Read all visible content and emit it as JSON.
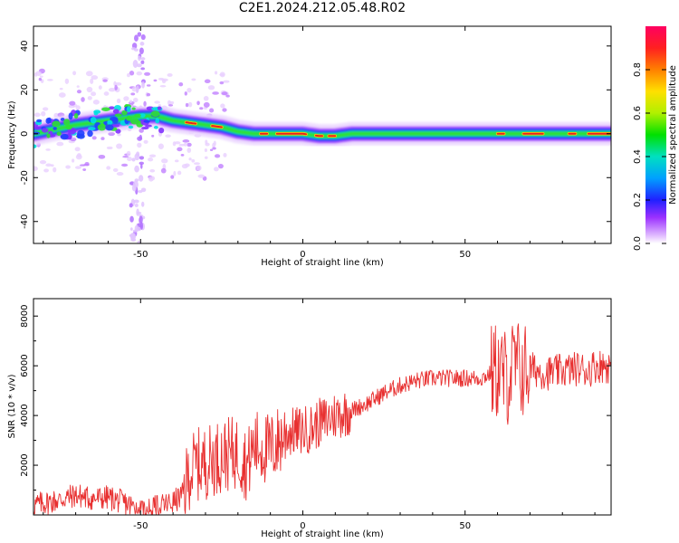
{
  "title": "C2E1.2024.212.05.48.R02",
  "chart_data": [
    {
      "type": "heatmap",
      "xlabel": "Height of straight line (km)",
      "ylabel": "Frequency (Hz)",
      "xlim": [
        -83,
        95
      ],
      "ylim": [
        -50,
        49
      ],
      "x_ticks": [
        -50,
        0,
        50
      ],
      "y_ticks": [
        -40,
        -20,
        0,
        20,
        40
      ],
      "colorbar": {
        "label": "Normalized spectral amplitude",
        "range": [
          0,
          1
        ],
        "ticks": [
          "0.0",
          "0.2",
          "0.4",
          "0.6",
          "0.8"
        ]
      },
      "ridge_frequency": {
        "x": [
          -83,
          -70,
          -60,
          -55,
          -50,
          -45,
          -40,
          -35,
          -30,
          -25,
          -20,
          -15,
          -10,
          -5,
          0,
          5,
          10,
          15,
          20,
          30,
          40,
          50,
          60,
          70,
          80,
          90,
          95
        ],
        "y": [
          0,
          4,
          6,
          7,
          8,
          8,
          6,
          5,
          4,
          3,
          1,
          0,
          0,
          0,
          0,
          -1,
          -1,
          0,
          0,
          0,
          0,
          0,
          0,
          0,
          0,
          0,
          0
        ]
      },
      "legend": "none"
    },
    {
      "type": "line",
      "xlabel": "Height of straight line (km)",
      "ylabel": "SNR (10 * v/v)",
      "xlim": [
        -83,
        95
      ],
      "ylim": [
        0,
        8700
      ],
      "x_ticks": [
        -50,
        0,
        50
      ],
      "y_ticks": [
        2000,
        4000,
        6000,
        8000
      ],
      "color": "#e83030",
      "series": [
        {
          "x": [
            -83,
            -75,
            -70,
            -65,
            -60,
            -55,
            -52,
            -50,
            -45,
            -40,
            -37,
            -35,
            -33,
            -30,
            -25,
            -20,
            -17,
            -15,
            -10,
            -5,
            0,
            3,
            5,
            7,
            10,
            15,
            20,
            25,
            30,
            35,
            40,
            45,
            50,
            55,
            58,
            60,
            63,
            65,
            68,
            70,
            75,
            80,
            85,
            88,
            90,
            95
          ],
          "y": [
            400,
            600,
            800,
            650,
            700,
            500,
            300,
            150,
            300,
            500,
            800,
            1700,
            2000,
            2100,
            2400,
            2500,
            2000,
            2800,
            2600,
            3300,
            3400,
            3500,
            3700,
            3800,
            4000,
            4200,
            4500,
            4900,
            5200,
            5400,
            5500,
            5500,
            5500,
            5500,
            5700,
            5800,
            5500,
            6000,
            5800,
            5900,
            5700,
            5800,
            5900,
            5800,
            6000,
            6000
          ]
        }
      ],
      "legend": "none"
    }
  ]
}
